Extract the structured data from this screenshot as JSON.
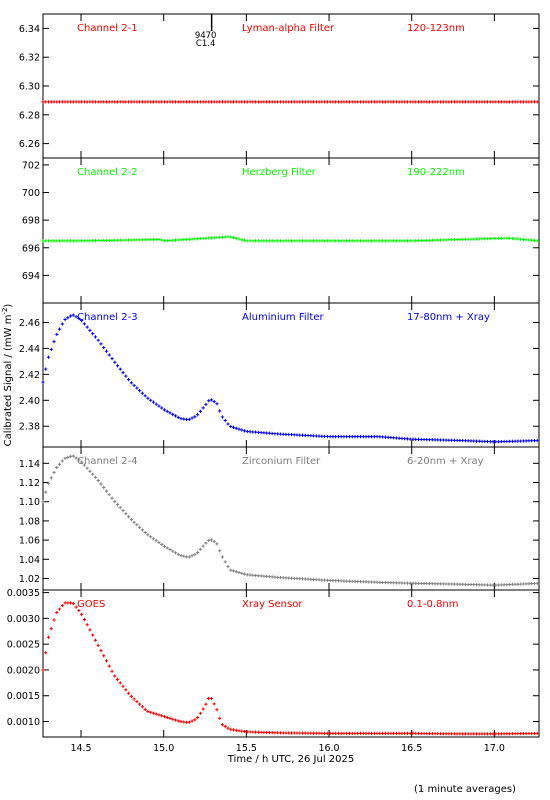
{
  "figure": {
    "ylabel": "Calibrated Signal / (mW m",
    "ylabel_sup": "-2",
    "ylabel_tail": ")",
    "xlabel": "Time / h UTC, 26 Jul 2025",
    "footnote": "(1 minute averages)",
    "xlim": [
      14.27,
      17.27
    ],
    "xticks": [
      "14.5",
      "15.0",
      "15.5",
      "16.0",
      "16.5",
      "17.0"
    ],
    "flare_marker": {
      "x": 15.29,
      "label1": "9470",
      "label2": "C1.4"
    }
  },
  "chart_data": [
    {
      "type": "scatter",
      "channel": "Channel 2-1",
      "filter": "Lyman-alpha Filter",
      "band": "120-123nm",
      "color": "#ff0000",
      "ylim": [
        6.25,
        6.35
      ],
      "yticks": [
        "6.26",
        "6.28",
        "6.30",
        "6.32",
        "6.34"
      ],
      "series": [
        {
          "x": [
            14.27,
            14.5,
            15.0,
            15.5,
            16.0,
            16.5,
            17.0,
            17.27
          ],
          "y": [
            6.289,
            6.289,
            6.289,
            6.289,
            6.289,
            6.289,
            6.289,
            6.289
          ]
        }
      ]
    },
    {
      "type": "scatter",
      "channel": "Channel 2-2",
      "filter": "Herzberg Filter",
      "band": "190-222nm",
      "color": "#00ff00",
      "ylim": [
        692,
        702.5
      ],
      "yticks": [
        "694",
        "696",
        "698",
        "700",
        "702"
      ],
      "series": [
        {
          "x": [
            14.27,
            14.5,
            14.98,
            15.0,
            15.4,
            15.5,
            16.0,
            16.5,
            17.08,
            17.27
          ],
          "y": [
            696.5,
            696.5,
            696.6,
            696.5,
            696.8,
            696.5,
            696.5,
            696.5,
            696.7,
            696.5
          ]
        }
      ]
    },
    {
      "type": "scatter",
      "channel": "Channel 2-3",
      "filter": "Aluminium Filter",
      "band": "17-80nm + Xray",
      "color": "#0000ff",
      "ylim": [
        2.364,
        2.475
      ],
      "yticks": [
        "2.38",
        "2.40",
        "2.42",
        "2.44",
        "2.46"
      ],
      "series": [
        {
          "x": [
            14.27,
            14.3,
            14.35,
            14.4,
            14.45,
            14.5,
            14.6,
            14.7,
            14.8,
            14.9,
            15.0,
            15.1,
            15.15,
            15.2,
            15.25,
            15.28,
            15.32,
            15.35,
            15.4,
            15.5,
            15.7,
            16.0,
            16.3,
            16.5,
            16.8,
            17.0,
            17.27
          ],
          "y": [
            2.414,
            2.432,
            2.45,
            2.462,
            2.466,
            2.462,
            2.447,
            2.43,
            2.414,
            2.402,
            2.393,
            2.386,
            2.385,
            2.388,
            2.396,
            2.401,
            2.398,
            2.388,
            2.38,
            2.376,
            2.374,
            2.372,
            2.372,
            2.37,
            2.369,
            2.368,
            2.369
          ]
        }
      ]
    },
    {
      "type": "scatter",
      "channel": "Channel 2-4",
      "filter": "Zirconium Filter",
      "band": "6-20nm + Xray",
      "color": "#808080",
      "ylim": [
        1.008,
        1.157
      ],
      "yticks": [
        "1.02",
        "1.04",
        "1.06",
        "1.08",
        "1.10",
        "1.12",
        "1.14"
      ],
      "series": [
        {
          "x": [
            14.27,
            14.3,
            14.35,
            14.4,
            14.45,
            14.5,
            14.6,
            14.7,
            14.8,
            14.9,
            15.0,
            15.1,
            15.15,
            15.2,
            15.25,
            15.28,
            15.32,
            15.35,
            15.4,
            15.5,
            15.7,
            16.0,
            16.3,
            16.5,
            16.8,
            17.0,
            17.27
          ],
          "y": [
            1.1,
            1.118,
            1.135,
            1.145,
            1.148,
            1.142,
            1.123,
            1.101,
            1.082,
            1.066,
            1.054,
            1.044,
            1.042,
            1.046,
            1.056,
            1.061,
            1.057,
            1.044,
            1.029,
            1.024,
            1.021,
            1.018,
            1.016,
            1.015,
            1.014,
            1.013,
            1.015
          ]
        }
      ]
    },
    {
      "type": "scatter",
      "channel": "GOES",
      "filter": "Xray Sensor",
      "band": "0.1-0.8nm",
      "color": "#ff0000",
      "ylim": [
        0.0007,
        0.00355
      ],
      "yticks": [
        "0.0010",
        "0.0015",
        "0.0020",
        "0.0025",
        "0.0030",
        "0.0035"
      ],
      "series": [
        {
          "x": [
            14.27,
            14.3,
            14.35,
            14.4,
            14.45,
            14.5,
            14.6,
            14.7,
            14.8,
            14.9,
            15.0,
            15.1,
            15.15,
            15.2,
            15.25,
            15.28,
            15.32,
            15.35,
            15.4,
            15.5,
            15.7,
            16.0,
            16.3,
            16.5,
            16.8,
            17.0,
            17.27
          ],
          "y": [
            0.002,
            0.0026,
            0.0031,
            0.0033,
            0.0033,
            0.0031,
            0.0025,
            0.0019,
            0.0015,
            0.0012,
            0.0011,
            0.001,
            0.00098,
            0.00105,
            0.0013,
            0.0015,
            0.00125,
            0.00095,
            0.00085,
            0.0008,
            0.00078,
            0.00077,
            0.00077,
            0.00077,
            0.00076,
            0.00076,
            0.00077
          ]
        }
      ]
    }
  ]
}
